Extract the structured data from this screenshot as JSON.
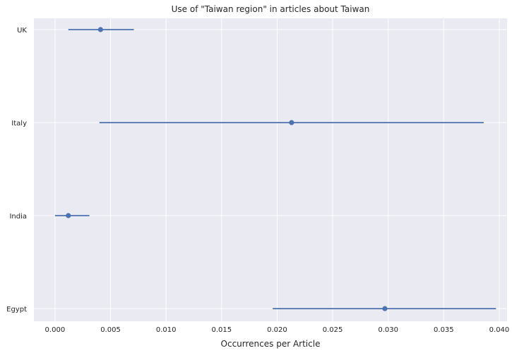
{
  "chart_data": {
    "type": "scatter",
    "title": "Use of \"Taiwan region\" in articles about Taiwan",
    "xlabel": "Occurrences per Article",
    "ylabel": "",
    "xlim": [
      -0.0019,
      0.0407
    ],
    "xticks": [
      "0.000",
      "0.005",
      "0.010",
      "0.015",
      "0.020",
      "0.025",
      "0.030",
      "0.035",
      "0.040"
    ],
    "categories": [
      "UK",
      "Italy",
      "India",
      "Egypt"
    ],
    "series": [
      {
        "points": [
          {
            "category": "UK",
            "value": 0.0041,
            "ci": [
              0.0012,
              0.0071
            ]
          },
          {
            "category": "Italy",
            "value": 0.0213,
            "ci": [
              0.004,
              0.0386
            ]
          },
          {
            "category": "India",
            "value": 0.0012,
            "ci": [
              0.0,
              0.0031
            ]
          },
          {
            "category": "Egypt",
            "value": 0.0297,
            "ci": [
              0.0196,
              0.0397
            ]
          }
        ]
      }
    ],
    "grid": true,
    "colors": {
      "background": "#eaeaf2",
      "grid": "#ffffff",
      "marker": "#4c72b0"
    }
  }
}
